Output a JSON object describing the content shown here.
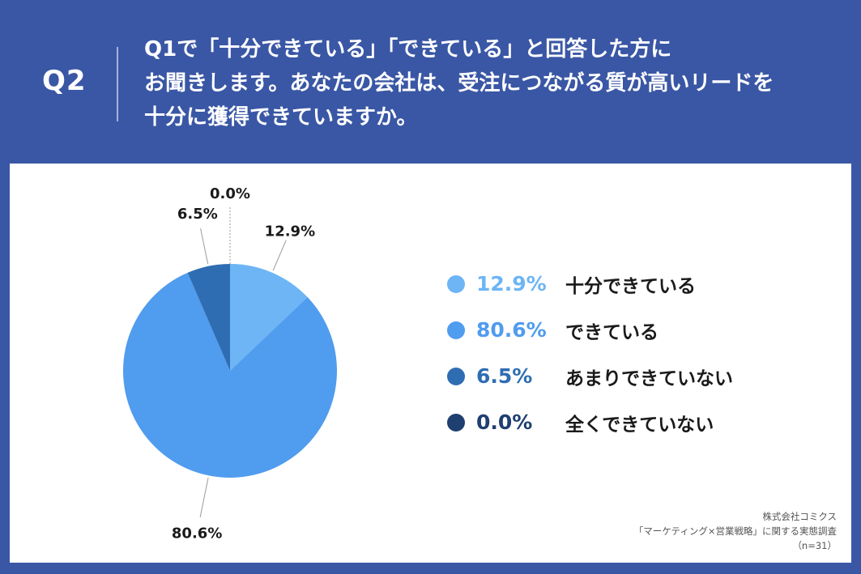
{
  "header": {
    "question_number": "Q2",
    "question_lines": [
      "Q1で「十分できている」「できている」と回答した方に",
      "お聞きします。あなたの会社は、受注につながる質が高いリードを",
      "十分に獲得できていますか。"
    ]
  },
  "chart_data": {
    "type": "pie",
    "start_angle_deg": 0,
    "direction": "clockwise",
    "slices": [
      {
        "label": "十分できている",
        "value": 12.9,
        "display": "12.9%",
        "color": "#6db5f5"
      },
      {
        "label": "できている",
        "value": 80.6,
        "display": "80.6%",
        "color": "#509cef"
      },
      {
        "label": "あまりできていない",
        "value": 6.5,
        "display": "6.5%",
        "color": "#2f6db3"
      },
      {
        "label": "全くできていない",
        "value": 0.0,
        "display": "0.0%",
        "color": "#1e3f70"
      }
    ]
  },
  "footer": {
    "company": "株式会社コミクス",
    "survey": "「マーケティング×営業戦略」に関する実態調査",
    "sample": "（n=31）"
  }
}
